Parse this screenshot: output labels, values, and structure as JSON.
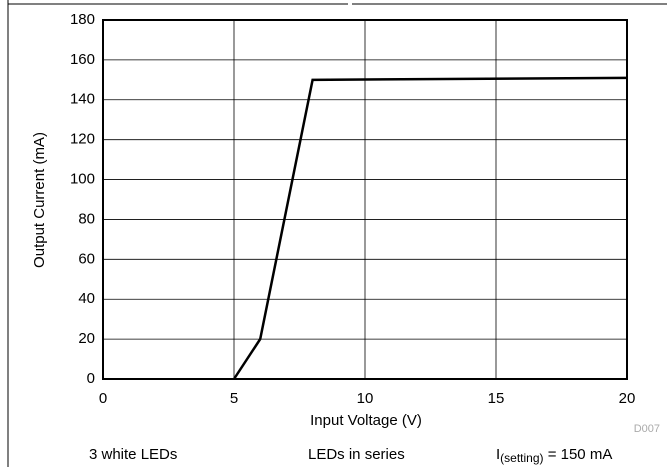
{
  "chart_data": {
    "type": "line",
    "xlabel": "Input Voltage (V)",
    "ylabel": "Output Current (mA)",
    "x": [
      5,
      6,
      8,
      20
    ],
    "values": [
      0,
      20,
      150,
      151
    ],
    "color": "#000000",
    "xlim": [
      0,
      20
    ],
    "xticks": [
      0,
      5,
      10,
      15,
      20
    ],
    "ylim": [
      0,
      180
    ],
    "yticks": [
      0,
      20,
      40,
      60,
      80,
      100,
      120,
      140,
      160,
      180
    ],
    "grid": true,
    "code": "D007",
    "notes": [
      "3 white LEDs",
      "LEDs in series"
    ],
    "setting": {
      "main": "I",
      "sub": "(setting)",
      "rest": " = 150 mA"
    }
  }
}
